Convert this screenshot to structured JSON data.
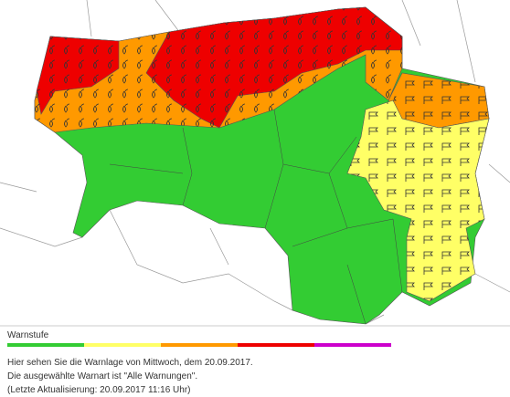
{
  "legend": {
    "title": "Warnstufe",
    "colors": [
      "#33cc33",
      "#ffff66",
      "#ff9900",
      "#ee0000",
      "#cc00cc"
    ]
  },
  "info": {
    "lines": [
      "Hier sehen Sie die Warnlage von Mittwoch, dem 20.09.2017.",
      "Die ausgewählte Warnart ist \"Alle Warnungen\".",
      "(Letzte Aktualisierung: 20.09.2017 11:16 Uhr)"
    ]
  }
}
